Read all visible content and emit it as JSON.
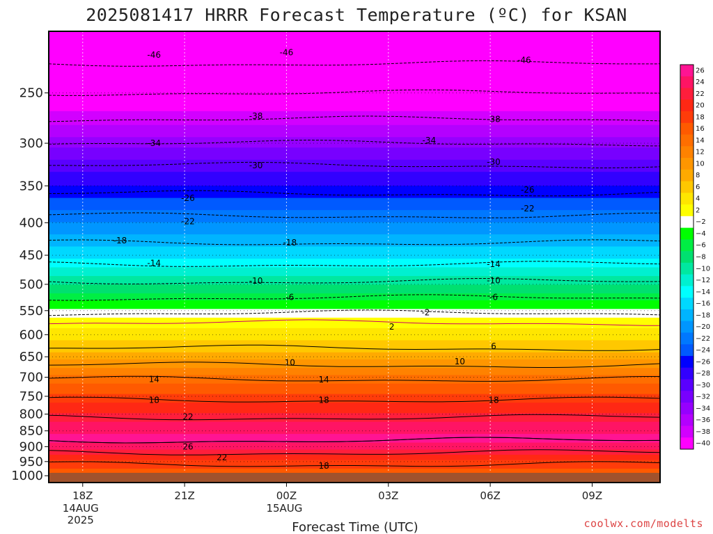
{
  "title": "2025081417 HRRR Forecast Temperature (ºC) for KSAN",
  "credit": "coolwx.com/modelts",
  "chart_data": {
    "type": "heatmap",
    "title": "2025081417 HRRR Forecast Temperature (ºC) for KSAN",
    "xlabel": "Forecast Time (UTC)",
    "ylabel": "",
    "x_ticks": [
      {
        "label": "18Z",
        "sub": [
          "14AUG",
          "2025"
        ],
        "hour": 0
      },
      {
        "label": "21Z",
        "sub": [],
        "hour": 3
      },
      {
        "label": "00Z",
        "sub": [
          "15AUG"
        ],
        "hour": 6
      },
      {
        "label": "03Z",
        "sub": [],
        "hour": 9
      },
      {
        "label": "06Z",
        "sub": [],
        "hour": 12
      },
      {
        "label": "09Z",
        "sub": [],
        "hour": 15
      }
    ],
    "xlim": [
      -1,
      17
    ],
    "y_ticks": [
      250,
      300,
      350,
      400,
      450,
      500,
      550,
      600,
      650,
      700,
      750,
      800,
      850,
      900,
      950,
      1000
    ],
    "ylim": [
      1025,
      200
    ],
    "y_scale": "log",
    "contour_levels": [
      -46,
      -42,
      -38,
      -34,
      -30,
      -26,
      -22,
      -18,
      -14,
      -10,
      -6,
      -2,
      2,
      6,
      10,
      14,
      18,
      22,
      26
    ],
    "temperature_profile": [
      {
        "p": 200,
        "t": -50
      },
      {
        "p": 225,
        "t": -46
      },
      {
        "p": 250,
        "t": -42
      },
      {
        "p": 275,
        "t": -38
      },
      {
        "p": 300,
        "t": -34
      },
      {
        "p": 325,
        "t": -30
      },
      {
        "p": 360,
        "t": -26
      },
      {
        "p": 390,
        "t": -22
      },
      {
        "p": 430,
        "t": -18
      },
      {
        "p": 465,
        "t": -14
      },
      {
        "p": 495,
        "t": -10
      },
      {
        "p": 525,
        "t": -6
      },
      {
        "p": 555,
        "t": -2
      },
      {
        "p": 575,
        "t": 2
      },
      {
        "p": 630,
        "t": 6
      },
      {
        "p": 670,
        "t": 10
      },
      {
        "p": 705,
        "t": 14
      },
      {
        "p": 760,
        "t": 18
      },
      {
        "p": 810,
        "t": 22
      },
      {
        "p": 880,
        "t": 26
      },
      {
        "p": 920,
        "t": 22
      },
      {
        "p": 960,
        "t": 18
      },
      {
        "p": 1000,
        "t": 16
      }
    ],
    "contour_labels": [
      {
        "text": "-46",
        "hour": 2.1,
        "p": 218
      },
      {
        "text": "-46",
        "hour": 6.0,
        "p": 216
      },
      {
        "text": "-46",
        "hour": 13.0,
        "p": 222
      },
      {
        "text": "-38",
        "hour": 5.1,
        "p": 272
      },
      {
        "text": "-38",
        "hour": 12.1,
        "p": 275
      },
      {
        "text": "-34",
        "hour": 2.1,
        "p": 300
      },
      {
        "text": "-34",
        "hour": 10.2,
        "p": 297
      },
      {
        "text": "-30",
        "hour": 5.1,
        "p": 325
      },
      {
        "text": "-30",
        "hour": 12.1,
        "p": 321
      },
      {
        "text": "-26",
        "hour": 3.1,
        "p": 366
      },
      {
        "text": "-26",
        "hour": 13.1,
        "p": 355
      },
      {
        "text": "-22",
        "hour": 3.1,
        "p": 398
      },
      {
        "text": "-22",
        "hour": 13.1,
        "p": 380
      },
      {
        "text": "-18",
        "hour": 1.1,
        "p": 427
      },
      {
        "text": "-18",
        "hour": 6.1,
        "p": 430
      },
      {
        "text": "-14",
        "hour": 2.1,
        "p": 463
      },
      {
        "text": "-14",
        "hour": 12.1,
        "p": 465
      },
      {
        "text": "-10",
        "hour": 5.1,
        "p": 494
      },
      {
        "text": "-10",
        "hour": 12.1,
        "p": 493
      },
      {
        "text": "-6",
        "hour": 6.1,
        "p": 524
      },
      {
        "text": "-6",
        "hour": 12.1,
        "p": 524
      },
      {
        "text": "-2",
        "hour": 10.1,
        "p": 554
      },
      {
        "text": "2",
        "hour": 9.1,
        "p": 583
      },
      {
        "text": "6",
        "hour": 12.1,
        "p": 626
      },
      {
        "text": "10",
        "hour": 6.1,
        "p": 664
      },
      {
        "text": "10",
        "hour": 11.1,
        "p": 661
      },
      {
        "text": "14",
        "hour": 2.1,
        "p": 705
      },
      {
        "text": "14",
        "hour": 7.1,
        "p": 706
      },
      {
        "text": "18",
        "hour": 2.1,
        "p": 761
      },
      {
        "text": "18",
        "hour": 7.1,
        "p": 761
      },
      {
        "text": "18",
        "hour": 12.1,
        "p": 761
      },
      {
        "text": "22",
        "hour": 3.1,
        "p": 808
      },
      {
        "text": "26",
        "hour": 3.1,
        "p": 900
      },
      {
        "text": "22",
        "hour": 4.1,
        "p": 936
      },
      {
        "text": "18",
        "hour": 7.1,
        "p": 965
      }
    ],
    "colorbar": {
      "labels": [
        "26",
        "24",
        "22",
        "20",
        "18",
        "16",
        "14",
        "12",
        "10",
        "8",
        "6",
        "4",
        "2",
        "−2",
        "−4",
        "−6",
        "−8",
        "−10",
        "−12",
        "−14",
        "−16",
        "−18",
        "−20",
        "−22",
        "−24",
        "−26",
        "−28",
        "−30",
        "−32",
        "−34",
        "−36",
        "−38",
        "−40"
      ],
      "colors": [
        "#ff1493",
        "#ff1464",
        "#ff1e3c",
        "#ff2814",
        "#ff3c0a",
        "#ff5a00",
        "#ff6e00",
        "#ff8200",
        "#ff9600",
        "#ffaa00",
        "#ffc800",
        "#ffe600",
        "#ffff00",
        "#ffffff",
        "#00ff00",
        "#00ee44",
        "#00e070",
        "#00e8a0",
        "#00f0d0",
        "#00ffff",
        "#00d8ff",
        "#00b4ff",
        "#0096ff",
        "#0078ff",
        "#005aff",
        "#0000ff",
        "#3200ff",
        "#5a00ff",
        "#7800ff",
        "#9600ff",
        "#b400ff",
        "#d200ff",
        "#ff00ff"
      ]
    }
  }
}
